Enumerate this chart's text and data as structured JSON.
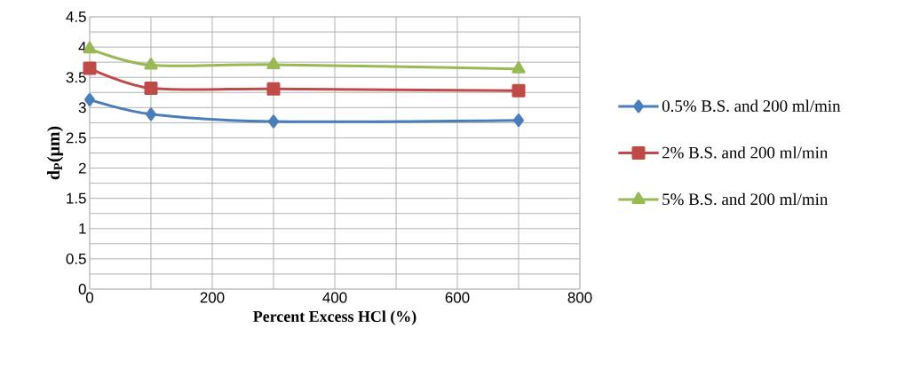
{
  "chart_data": {
    "type": "line",
    "xlabel": "Percent Excess HCl (%)",
    "ylabel": "d$_{P}$(μm)",
    "x": [
      0,
      100,
      300,
      700
    ],
    "series": [
      {
        "name": "0.5% B.S. and 200 ml/min",
        "color": "#4a7ebb",
        "marker": "diamond",
        "values": [
          3.13,
          2.89,
          2.77,
          2.79
        ]
      },
      {
        "name": "2% B.S. and 200 ml/min",
        "color": "#be4b48",
        "marker": "square",
        "values": [
          3.65,
          3.32,
          3.31,
          3.28
        ]
      },
      {
        "name": "5% B.S. and 200 ml/min",
        "color": "#98b954",
        "marker": "triangle",
        "values": [
          3.97,
          3.7,
          3.71,
          3.64
        ]
      }
    ],
    "xlim": [
      0,
      800
    ],
    "ylim": [
      0,
      4.5
    ],
    "xticks": [
      0,
      200,
      400,
      600,
      800
    ],
    "yticks": [
      0,
      0.5,
      1,
      1.5,
      2,
      2.5,
      3,
      3.5,
      4,
      4.5
    ],
    "grid": true,
    "legend": "right",
    "line_style": "solid"
  }
}
